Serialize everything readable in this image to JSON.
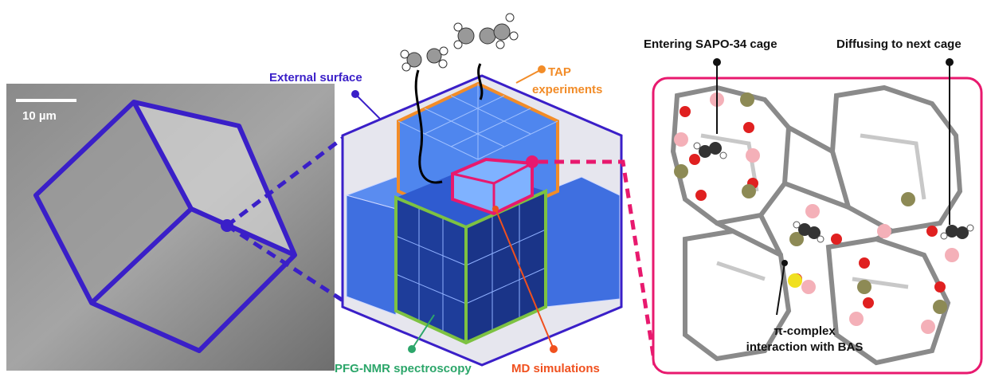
{
  "sem_image": {
    "scale_bar": "10 µm"
  },
  "labels": {
    "external_surface": "External surface",
    "tap": [
      "TAP",
      "experiments"
    ],
    "pfg_nmr": "PFG-NMR spectroscopy",
    "md": "MD simulations",
    "entering": "Entering SAPO-34 cage",
    "diffusing": "Diffusing to next cage",
    "pi_complex": [
      "π-complex",
      "interaction with BAS"
    ]
  }
}
